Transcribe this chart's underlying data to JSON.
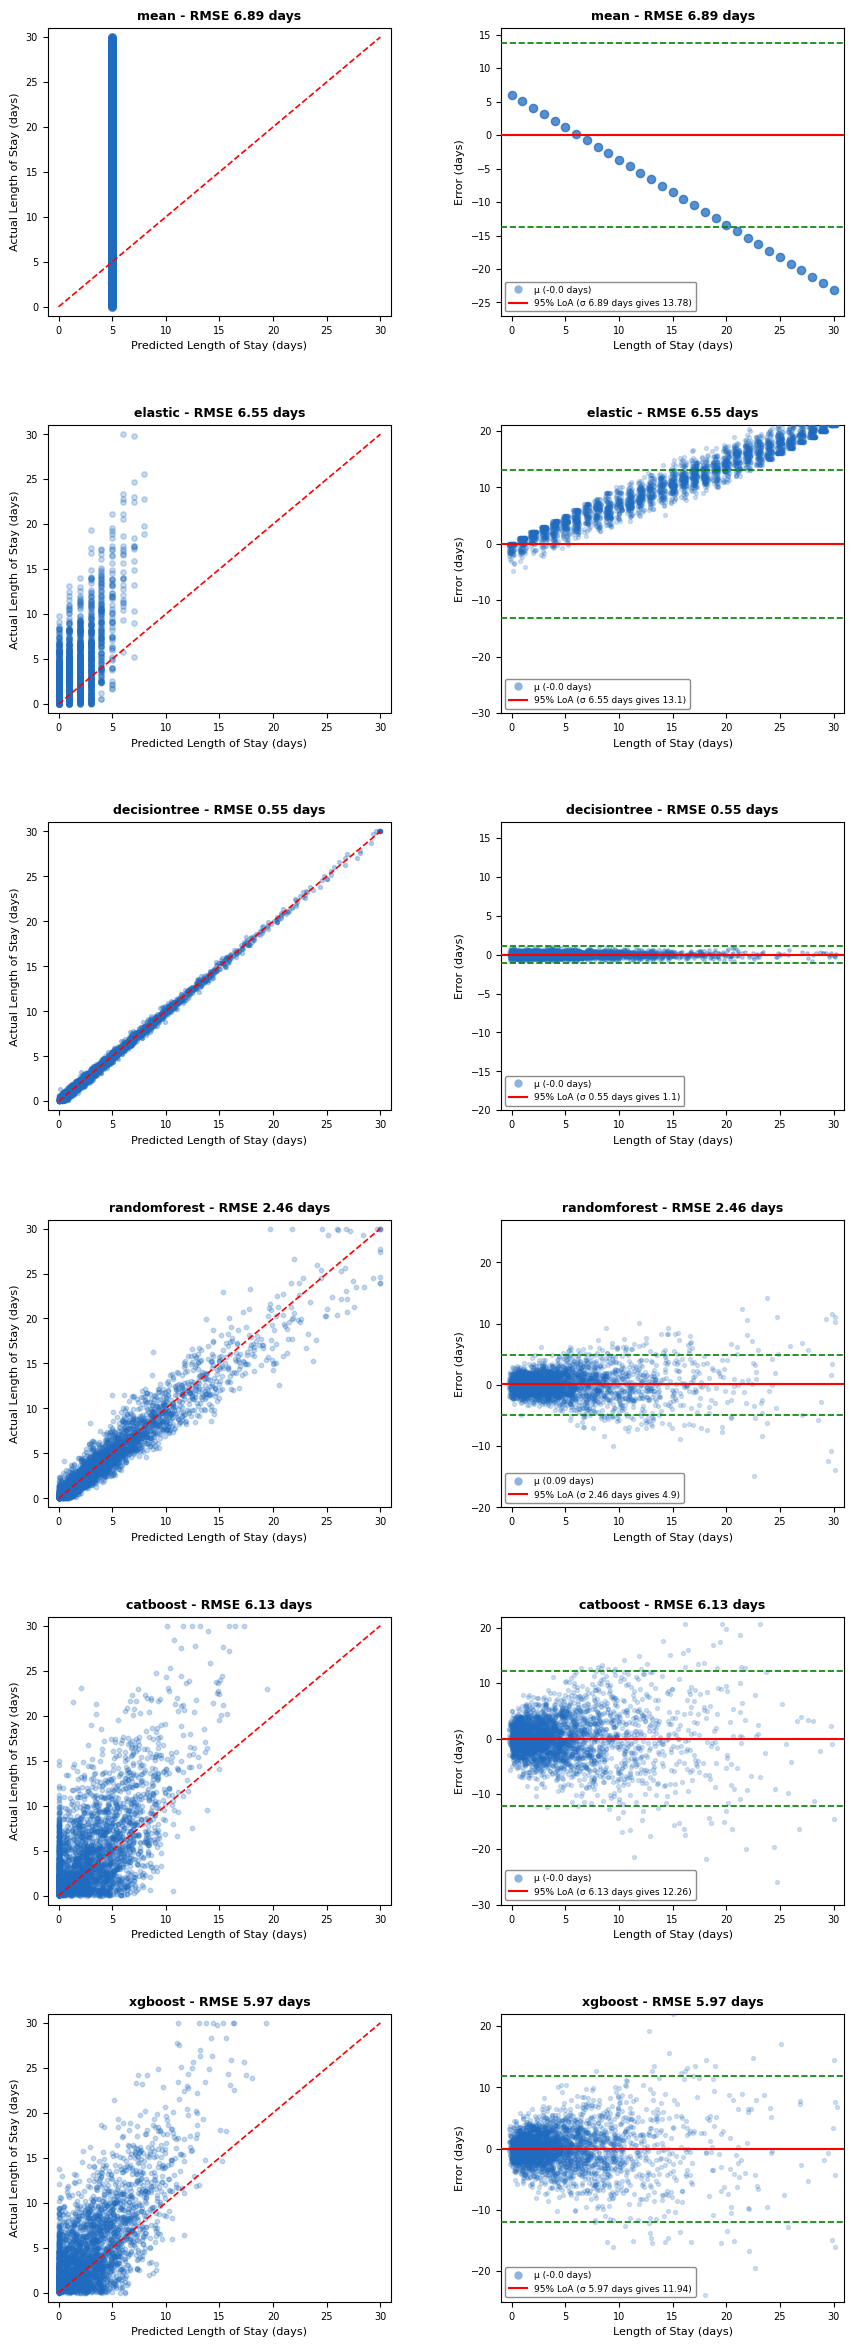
{
  "models": [
    {
      "name": "mean",
      "rmse": 6.89,
      "mu": -0.0,
      "loa": 13.78,
      "scatter_pred_x": [
        5,
        5,
        5,
        5,
        5,
        5,
        5,
        5,
        5,
        5,
        5,
        5,
        5,
        5,
        5,
        5,
        5,
        5,
        5,
        5,
        5,
        5,
        5,
        5,
        5,
        5,
        5,
        5,
        5,
        5
      ],
      "scatter_pred_y": [
        0,
        1,
        2,
        3,
        4,
        5,
        6,
        7,
        8,
        9,
        10,
        11,
        12,
        13,
        14,
        15,
        16,
        17,
        18,
        19,
        20,
        21,
        22,
        23,
        24,
        25,
        26,
        27,
        28,
        30
      ],
      "error_x": [
        0,
        1,
        2,
        3,
        4,
        5,
        6,
        7,
        8,
        9,
        10,
        11,
        12,
        13,
        14,
        15,
        16,
        17,
        18,
        19,
        20,
        21,
        22,
        23,
        24,
        25,
        26,
        27,
        28,
        29,
        30
      ],
      "error_y": [
        6,
        5,
        4,
        3.5,
        2.5,
        1.5,
        0.5,
        0,
        -0.5,
        -1.5,
        -2.5,
        -3.5,
        -4.5,
        -5.5,
        -6.5,
        -7.5,
        -8.5,
        -9.5,
        -10.5,
        -13,
        -14.5,
        -15.5,
        -17,
        -18,
        -19,
        -20,
        -21,
        -22,
        -23,
        -24,
        -25
      ],
      "scatter_type": "single_column",
      "error_type": "scatter",
      "ylim_pred": [
        0,
        30
      ],
      "ylim_error": [
        -27,
        16
      ],
      "xlim_error": [
        0,
        30
      ]
    },
    {
      "name": "elastic",
      "rmse": 6.55,
      "mu": 0.0,
      "loa": 13.1,
      "scatter_pred_x": null,
      "scatter_pred_y": null,
      "error_x": null,
      "error_y": null,
      "scatter_type": "multi_column",
      "error_type": "column_scatter",
      "ylim_pred": [
        0,
        30
      ],
      "ylim_error": [
        -30,
        20
      ],
      "xlim_error": [
        0,
        30
      ]
    },
    {
      "name": "decisiontree",
      "rmse": 0.55,
      "mu": 0.0,
      "loa": 1.1,
      "scatter_pred_x": null,
      "scatter_pred_y": null,
      "error_x": null,
      "error_y": null,
      "scatter_type": "diagonal",
      "error_type": "column_scatter_small",
      "ylim_pred": [
        0,
        30
      ],
      "ylim_error": [
        -20,
        17
      ],
      "xlim_error": [
        0,
        30
      ]
    },
    {
      "name": "randomforest",
      "rmse": 2.46,
      "mu": 0.09,
      "loa": 4.9,
      "scatter_pred_x": null,
      "scatter_pred_y": null,
      "error_x": null,
      "error_y": null,
      "scatter_type": "fan",
      "error_type": "column_scatter_fan",
      "ylim_pred": [
        0,
        30
      ],
      "ylim_error": [
        -20,
        27
      ],
      "xlim_error": [
        0,
        30
      ]
    },
    {
      "name": "catboost",
      "rmse": 6.13,
      "mu": 0.0,
      "loa": 12.26,
      "scatter_pred_x": null,
      "scatter_pred_y": null,
      "error_x": null,
      "error_y": null,
      "scatter_type": "fan2",
      "error_type": "column_scatter_fan2",
      "ylim_pred": [
        0,
        30
      ],
      "ylim_error": [
        -30,
        22
      ],
      "xlim_error": [
        0,
        30
      ]
    },
    {
      "name": "xgboost",
      "rmse": 5.97,
      "mu": 0.0,
      "loa": 11.94,
      "scatter_pred_x": null,
      "scatter_pred_y": null,
      "error_x": null,
      "error_y": null,
      "scatter_type": "fan3",
      "error_type": "column_scatter_fan3",
      "ylim_pred": [
        0,
        30
      ],
      "ylim_error": [
        -25,
        22
      ],
      "xlim_error": [
        0,
        30
      ]
    }
  ],
  "dot_color": "#1f77b4",
  "dot_alpha": 0.5,
  "line_color": "red",
  "loa_color": "green",
  "background_color": "white",
  "fig_width": 8.85,
  "fig_height": 23.44
}
